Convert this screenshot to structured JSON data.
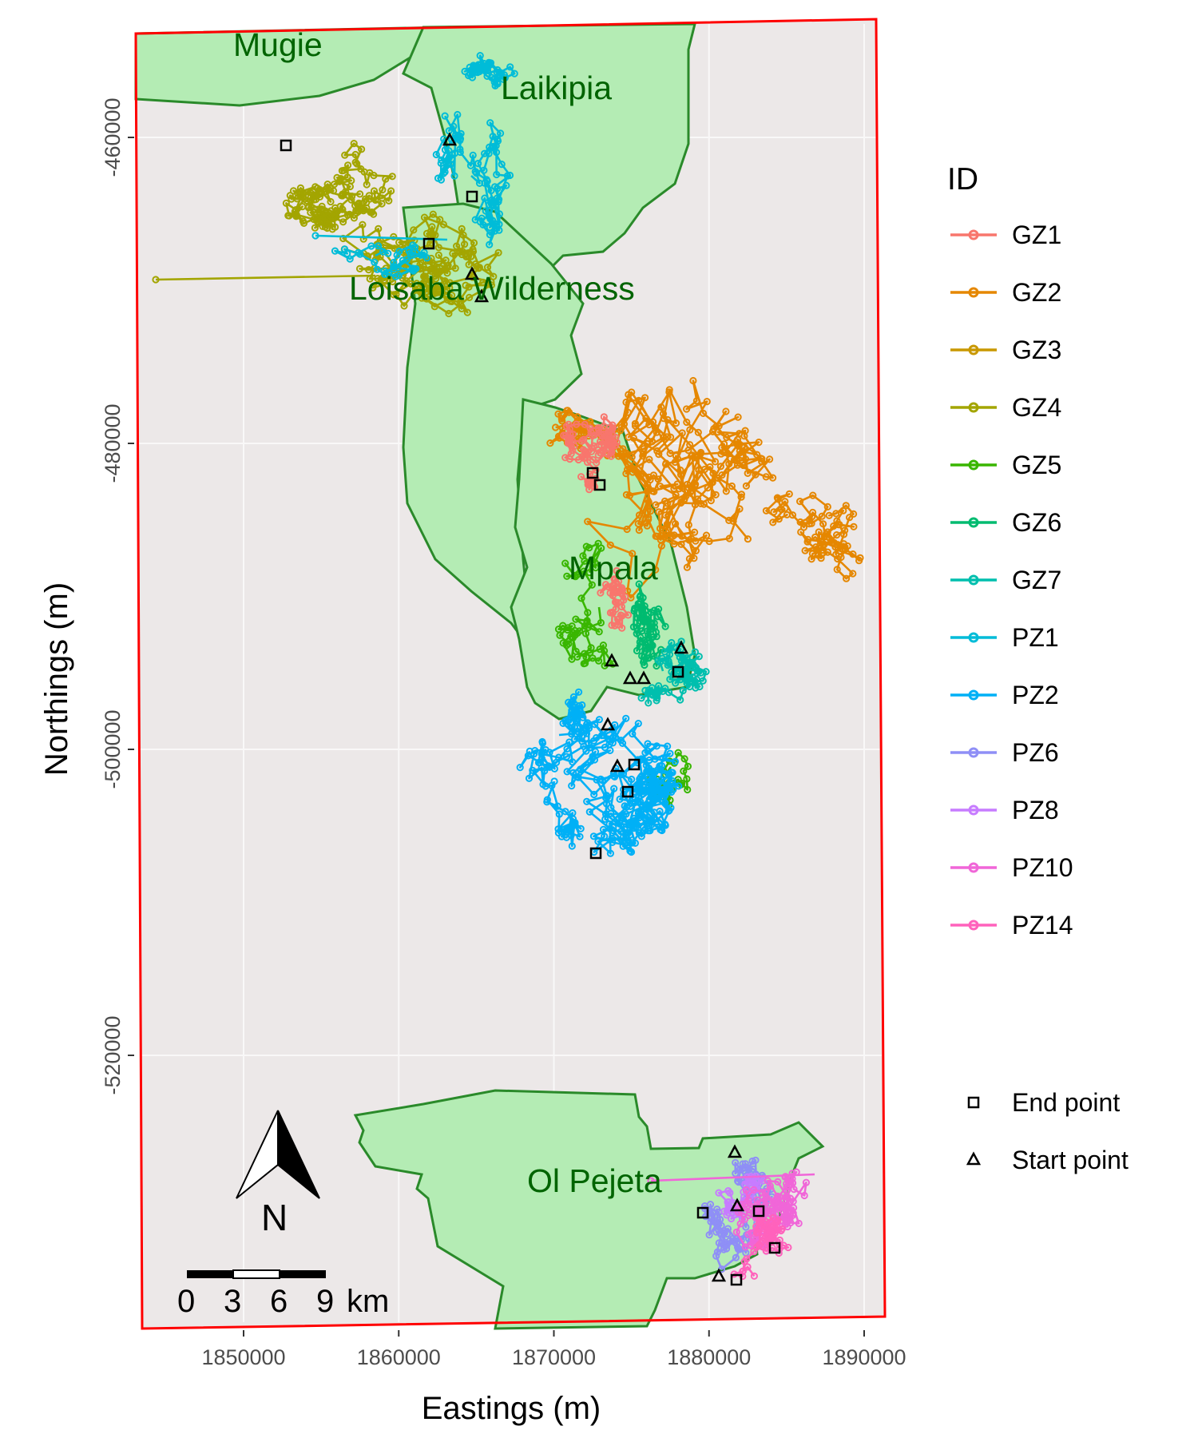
{
  "map": {
    "panel_background": "#ece8e8",
    "border_color": "#ff0000",
    "region_fill": "#b4ecb4",
    "region_stroke": "#2a8a2a",
    "label_color": "#006400"
  },
  "axes": {
    "x_title": "Eastings (m)",
    "y_title": "Northings (m)",
    "x_ticks": [
      {
        "value": 1850000,
        "label": "1850000"
      },
      {
        "value": 1860000,
        "label": "1860000"
      },
      {
        "value": 1870000,
        "label": "1870000"
      },
      {
        "value": 1880000,
        "label": "1880000"
      },
      {
        "value": 1890000,
        "label": "1890000"
      }
    ],
    "y_ticks": [
      {
        "value": -460000,
        "label": "-460000"
      },
      {
        "value": -480000,
        "label": "-480000"
      },
      {
        "value": -500000,
        "label": "-500000"
      },
      {
        "value": -520000,
        "label": "-520000"
      }
    ]
  },
  "regions": [
    {
      "name": "Mugie",
      "label": "Mugie"
    },
    {
      "name": "Laikipia",
      "label": "Laikipia"
    },
    {
      "name": "Loisaba Wilderness",
      "label": "Loisaba Wilderness"
    },
    {
      "name": "Mpala",
      "label": "Mpala"
    },
    {
      "name": "Ol Pejeta",
      "label": "Ol Pejeta"
    }
  ],
  "legend": {
    "title": "ID",
    "items": [
      {
        "id": "GZ1",
        "color": "#f8766d"
      },
      {
        "id": "GZ2",
        "color": "#e58700"
      },
      {
        "id": "GZ3",
        "color": "#c99800"
      },
      {
        "id": "GZ4",
        "color": "#a3a500"
      },
      {
        "id": "GZ5",
        "color": "#39b600"
      },
      {
        "id": "GZ6",
        "color": "#00bb70"
      },
      {
        "id": "GZ7",
        "color": "#00bfae"
      },
      {
        "id": "PZ1",
        "color": "#00bcd8"
      },
      {
        "id": "PZ2",
        "color": "#00b0f6"
      },
      {
        "id": "PZ6",
        "color": "#8f8ff6"
      },
      {
        "id": "PZ8",
        "color": "#c77cff"
      },
      {
        "id": "PZ10",
        "color": "#f066d8"
      },
      {
        "id": "PZ14",
        "color": "#ff62bc"
      }
    ],
    "point_items": [
      {
        "shape": "square",
        "label": "End point"
      },
      {
        "shape": "triangle",
        "label": "Start point"
      }
    ]
  },
  "north_arrow": {
    "label": "N"
  },
  "scale_bar": {
    "labels": [
      "0",
      "3",
      "6",
      "9"
    ],
    "unit": "km"
  }
}
